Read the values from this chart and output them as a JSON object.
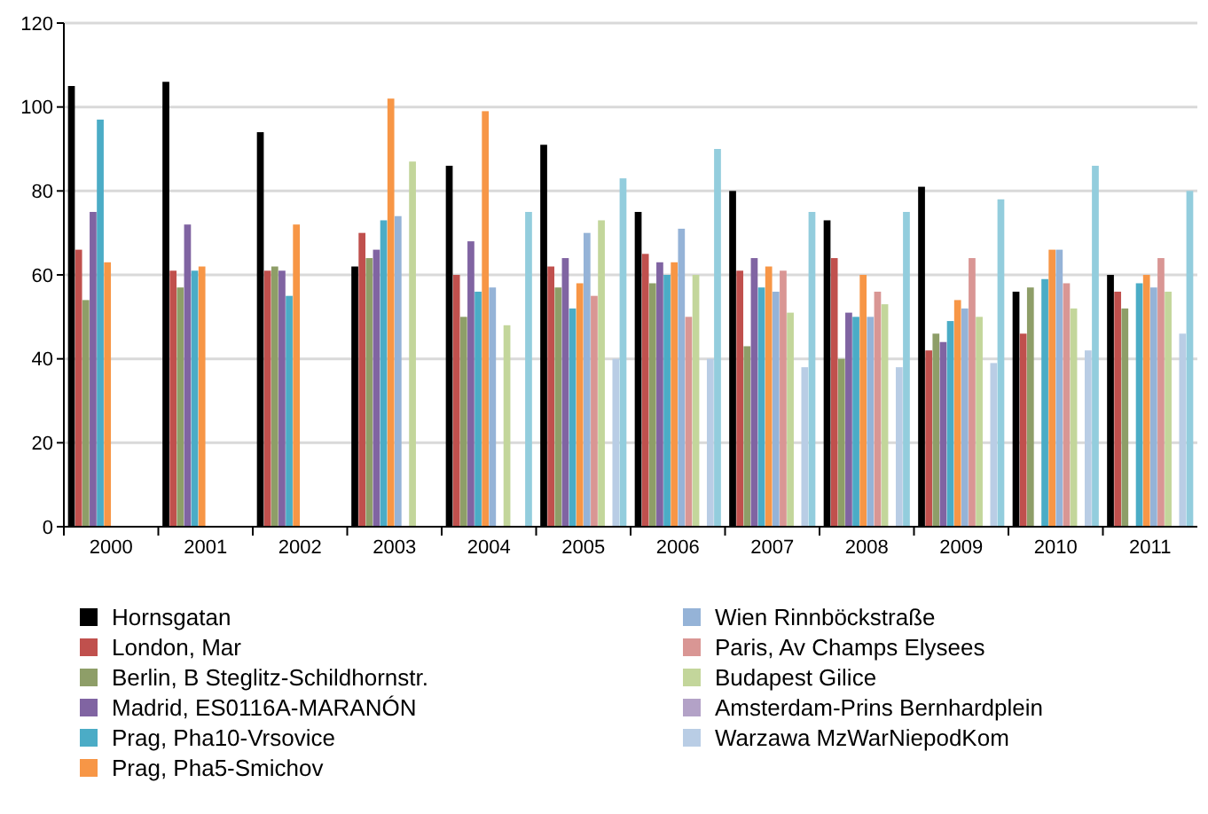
{
  "chart_data": {
    "type": "bar",
    "categories": [
      "2000",
      "2001",
      "2002",
      "2003",
      "2004",
      "2005",
      "2006",
      "2007",
      "2008",
      "2009",
      "2010",
      "2011"
    ],
    "series": [
      {
        "name": "Hornsgatan",
        "color": "#000000",
        "values": [
          105,
          106,
          94,
          62,
          86,
          91,
          75,
          80,
          73,
          81,
          56,
          60
        ]
      },
      {
        "name": "London, Mar",
        "color": "#c0504d",
        "values": [
          66,
          61,
          61,
          70,
          60,
          62,
          65,
          61,
          64,
          42,
          46,
          56
        ]
      },
      {
        "name": "Berlin, B Steglitz-Schildhornstr.",
        "color": "#8e9e68",
        "values": [
          54,
          57,
          62,
          64,
          50,
          57,
          58,
          43,
          40,
          46,
          57,
          52
        ]
      },
      {
        "name": "Madrid, ES0116A-MARANÓN",
        "color": "#8064a2",
        "values": [
          75,
          72,
          61,
          66,
          68,
          64,
          63,
          64,
          51,
          44,
          null,
          null
        ]
      },
      {
        "name": "Prag, Pha10-Vrsovice",
        "color": "#4bacc6",
        "values": [
          97,
          61,
          55,
          73,
          56,
          52,
          60,
          57,
          50,
          49,
          59,
          58
        ]
      },
      {
        "name": "Prag, Pha5-Smichov",
        "color": "#f79646",
        "values": [
          63,
          62,
          72,
          102,
          99,
          58,
          63,
          62,
          60,
          54,
          66,
          60
        ]
      },
      {
        "name": "Wien Rinnböckstraße",
        "color": "#95b3d7",
        "values": [
          null,
          null,
          null,
          74,
          57,
          70,
          71,
          56,
          50,
          52,
          66,
          57
        ]
      },
      {
        "name": "Paris, Av Champs Elysees",
        "color": "#d99694",
        "values": [
          null,
          null,
          null,
          null,
          null,
          55,
          50,
          61,
          56,
          64,
          58,
          64
        ]
      },
      {
        "name": "Budapest Gilice",
        "color": "#c3d69b",
        "values": [
          null,
          null,
          null,
          87,
          48,
          73,
          60,
          51,
          53,
          50,
          52,
          56
        ]
      },
      {
        "name": "Amsterdam-Prins Bernhardplein",
        "color": "#b3a2c7",
        "values": [
          null,
          null,
          null,
          null,
          null,
          null,
          null,
          null,
          null,
          null,
          null,
          null
        ]
      },
      {
        "name": "Warzawa MzWarNiepodKom",
        "color": "#b9cde5",
        "values": [
          null,
          null,
          null,
          null,
          null,
          40,
          40,
          38,
          38,
          39,
          42,
          46
        ]
      },
      {
        "color": "#93cddd",
        "values": [
          null,
          null,
          null,
          null,
          75,
          83,
          90,
          75,
          75,
          78,
          86,
          80
        ]
      }
    ],
    "ylim": [
      0,
      120
    ],
    "yticks": [
      0,
      20,
      40,
      60,
      80,
      100,
      120
    ],
    "grid": "y",
    "legend": "bottom"
  }
}
